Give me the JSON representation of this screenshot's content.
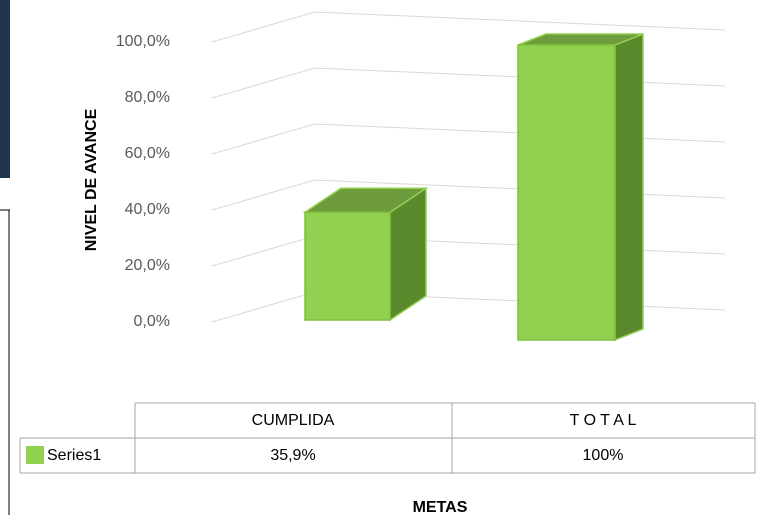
{
  "chart_data": {
    "type": "bar3d",
    "x_label": "METAS",
    "y_label": "NIVEL DE AVANCE",
    "categories": [
      "CUMPLIDA",
      "T O T A L"
    ],
    "series": [
      {
        "name": "Series1",
        "color": "#92d050",
        "values": [
          35.9,
          100
        ],
        "value_labels": [
          "35,9%",
          "100%"
        ]
      }
    ],
    "ylim": [
      0,
      100
    ],
    "yticks": [
      {
        "value": 0,
        "label": "0,0%"
      },
      {
        "value": 20,
        "label": "20,0%"
      },
      {
        "value": 40,
        "label": "40,0%"
      },
      {
        "value": 60,
        "label": "60,0%"
      },
      {
        "value": 80,
        "label": "80,0%"
      },
      {
        "value": 100,
        "label": "100,0%"
      }
    ],
    "grid": true,
    "data_table": true
  }
}
